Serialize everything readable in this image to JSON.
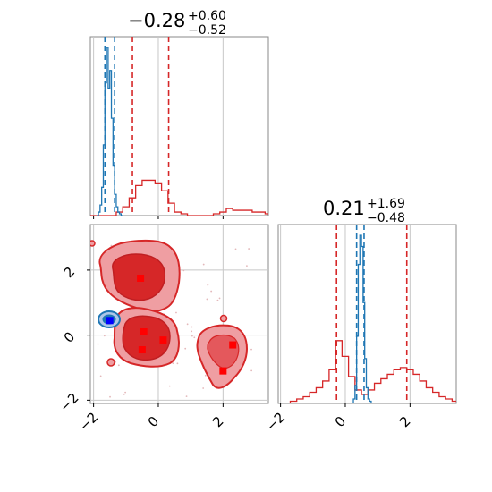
{
  "chart_data": {
    "type": "corner",
    "titles": [
      {
        "value": "−0.28",
        "sup": "+0.60",
        "sub": "−0.52"
      },
      {
        "value": "0.21",
        "sup": "+1.69",
        "sub": "−0.48"
      }
    ],
    "tick_labels": [
      "−2",
      "0",
      "2"
    ],
    "axes": {
      "param_0": {
        "range": [
          -2.1,
          3.4
        ],
        "ticks": [
          -2,
          0,
          2
        ]
      },
      "param_1": {
        "range": [
          -2.1,
          3.4
        ],
        "ticks": [
          -2,
          0,
          2
        ]
      }
    },
    "grid": true,
    "series": [
      {
        "color": "#d62728",
        "quantiles": {
          "param_0": [
            -0.8,
            0.32
          ],
          "param_1": [
            -0.27,
            1.9
          ]
        },
        "hist_param_0": {
          "bins": [
            -2.1,
            -1.9,
            -1.7,
            -1.5,
            -1.3,
            -1.1,
            -0.9,
            -0.7,
            -0.5,
            -0.3,
            -0.1,
            0.1,
            0.3,
            0.5,
            0.7,
            0.9,
            1.1,
            1.3,
            1.5,
            1.7,
            1.9,
            2.1,
            2.3,
            2.5,
            2.7,
            2.9,
            3.1,
            3.3
          ],
          "counts": [
            0,
            0,
            0,
            0,
            0.02,
            0.05,
            0.1,
            0.17,
            0.2,
            0.2,
            0.18,
            0.14,
            0.07,
            0.02,
            0.01,
            0,
            0,
            0,
            0,
            0.01,
            0.02,
            0.04,
            0.03,
            0.03,
            0.03,
            0.02,
            0.02,
            0.01
          ]
        },
        "hist_param_1": {
          "bins": [
            -2.1,
            -1.9,
            -1.7,
            -1.5,
            -1.3,
            -1.1,
            -0.9,
            -0.7,
            -0.5,
            -0.3,
            -0.1,
            0.1,
            0.3,
            0.5,
            0.7,
            0.9,
            1.1,
            1.3,
            1.5,
            1.7,
            1.9,
            2.1,
            2.3,
            2.5,
            2.7,
            2.9,
            3.1,
            3.3
          ],
          "counts": [
            0,
            0,
            0.01,
            0.02,
            0.03,
            0.05,
            0.07,
            0.1,
            0.15,
            0.28,
            0.21,
            0.12,
            0.06,
            0.04,
            0.06,
            0.09,
            0.11,
            0.13,
            0.15,
            0.16,
            0.15,
            0.13,
            0.1,
            0.07,
            0.05,
            0.03,
            0.02,
            0.01
          ]
        },
        "modes": [
          {
            "x": -0.55,
            "y": 1.75
          },
          {
            "x": -0.45,
            "y": 0.1
          },
          {
            "x": -0.5,
            "y": -0.45
          },
          {
            "x": 0.15,
            "y": -0.15
          },
          {
            "x": 2.3,
            "y": -0.3
          },
          {
            "x": 2.0,
            "y": -1.1
          }
        ]
      },
      {
        "color": "#1f77b4",
        "quantiles": {
          "param_0": [
            -1.65,
            -1.35
          ],
          "param_1": [
            0.35,
            0.58
          ]
        },
        "hist_param_0": {
          "bins": [
            -1.9,
            -1.85,
            -1.8,
            -1.75,
            -1.7,
            -1.65,
            -1.6,
            -1.55,
            -1.5,
            -1.45,
            -1.4,
            -1.35,
            -1.3,
            -1.25,
            -1.2,
            -1.15
          ],
          "counts": [
            0,
            0.02,
            0.06,
            0.16,
            0.4,
            0.75,
            0.95,
            0.72,
            0.82,
            0.55,
            0.28,
            0.12,
            0.05,
            0.02,
            0.01,
            0
          ]
        },
        "hist_param_1": {
          "bins": [
            0.2,
            0.25,
            0.3,
            0.35,
            0.4,
            0.45,
            0.5,
            0.55,
            0.6,
            0.65,
            0.7,
            0.75,
            0.8
          ],
          "counts": [
            0,
            0.02,
            0.08,
            0.3,
            0.62,
            0.75,
            0.7,
            0.45,
            0.2,
            0.07,
            0.02,
            0.01,
            0
          ]
        },
        "modes": [
          {
            "x": -1.5,
            "y": 0.45
          }
        ]
      }
    ]
  }
}
